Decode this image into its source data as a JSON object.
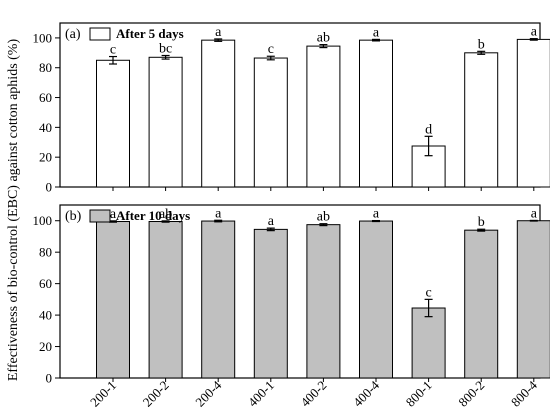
{
  "chart_data": {
    "type": "bar",
    "ylabel": "Effectiveness of bio-control (EBC)  against cotton aphids (%)",
    "categories": [
      "200-1",
      "200-2",
      "200-4",
      "400-1",
      "400-2",
      "400-4",
      "800-1",
      "800-2",
      "800-4"
    ],
    "ylim": [
      0,
      110
    ],
    "yticks": [
      0,
      20,
      40,
      60,
      80,
      100
    ],
    "panels": [
      {
        "label": "(a)",
        "legend": "After 5 days",
        "bar_color": "#ffffff",
        "values": [
          85,
          87,
          98.5,
          86.5,
          94.5,
          98.5,
          27.5,
          90,
          99
        ],
        "errors": [
          2.5,
          1.2,
          0.8,
          1.2,
          1,
          0.5,
          6.5,
          1,
          0.5
        ],
        "letters": [
          "c",
          "bc",
          "a",
          "c",
          "ab",
          "a",
          "d",
          "b",
          "a"
        ]
      },
      {
        "label": "(b)",
        "legend": "After 10 days",
        "bar_color": "#c0c0c0",
        "values": [
          99.5,
          99.5,
          99.8,
          94.5,
          97.5,
          99.8,
          44.5,
          94,
          100
        ],
        "errors": [
          0.4,
          0.4,
          0.5,
          0.8,
          0.6,
          0.3,
          5.5,
          0.6,
          0.2
        ],
        "letters": [
          "a",
          "ab",
          "a",
          "a",
          "ab",
          "a",
          "c",
          "b",
          "a"
        ]
      }
    ]
  }
}
